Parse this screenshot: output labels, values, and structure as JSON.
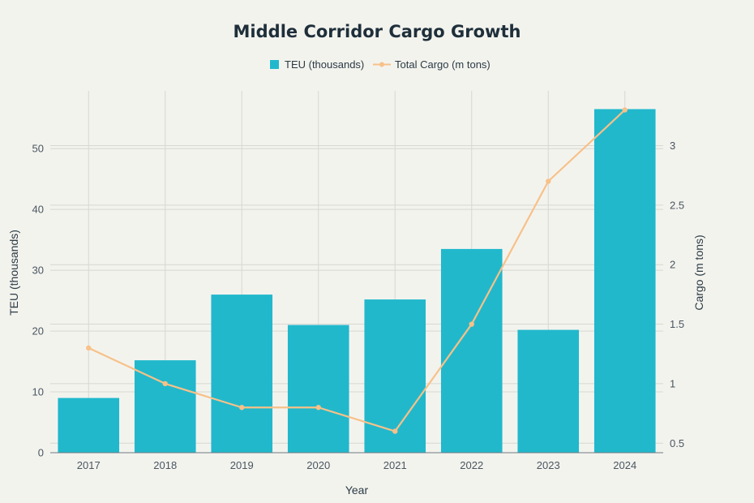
{
  "chart_data": {
    "type": "bar",
    "title": "Middle Corridor Cargo Growth",
    "xlabel": "Year",
    "categories": [
      "2017",
      "2018",
      "2019",
      "2020",
      "2021",
      "2022",
      "2023",
      "2024"
    ],
    "series": [
      {
        "name": "TEU (thousands)",
        "type": "bar",
        "axis": "left",
        "color": "#21b8cc",
        "values": [
          9.0,
          15.2,
          26.0,
          21.0,
          25.2,
          33.5,
          20.2,
          56.5
        ]
      },
      {
        "name": "Total Cargo (m tons)",
        "type": "line",
        "axis": "right",
        "color": "#f7c188",
        "values": [
          1.3,
          1.0,
          0.8,
          0.8,
          0.6,
          1.5,
          2.7,
          3.3
        ]
      }
    ],
    "y_left": {
      "label": "TEU (thousands)",
      "range": [
        0,
        59.5
      ],
      "ticks": [
        0,
        10,
        20,
        30,
        40,
        50
      ],
      "tick_labels": [
        "0",
        "10",
        "20",
        "30",
        "40",
        "50"
      ]
    },
    "y_right": {
      "label": "Cargo (m tons)",
      "range": [
        0.42,
        3.46
      ],
      "ticks": [
        0.5,
        1,
        1.5,
        2,
        2.5,
        3
      ],
      "tick_labels": [
        "0.5",
        "1",
        "1.5",
        "2",
        "2.5",
        "3"
      ]
    },
    "grid": true,
    "legend": "top-center"
  }
}
